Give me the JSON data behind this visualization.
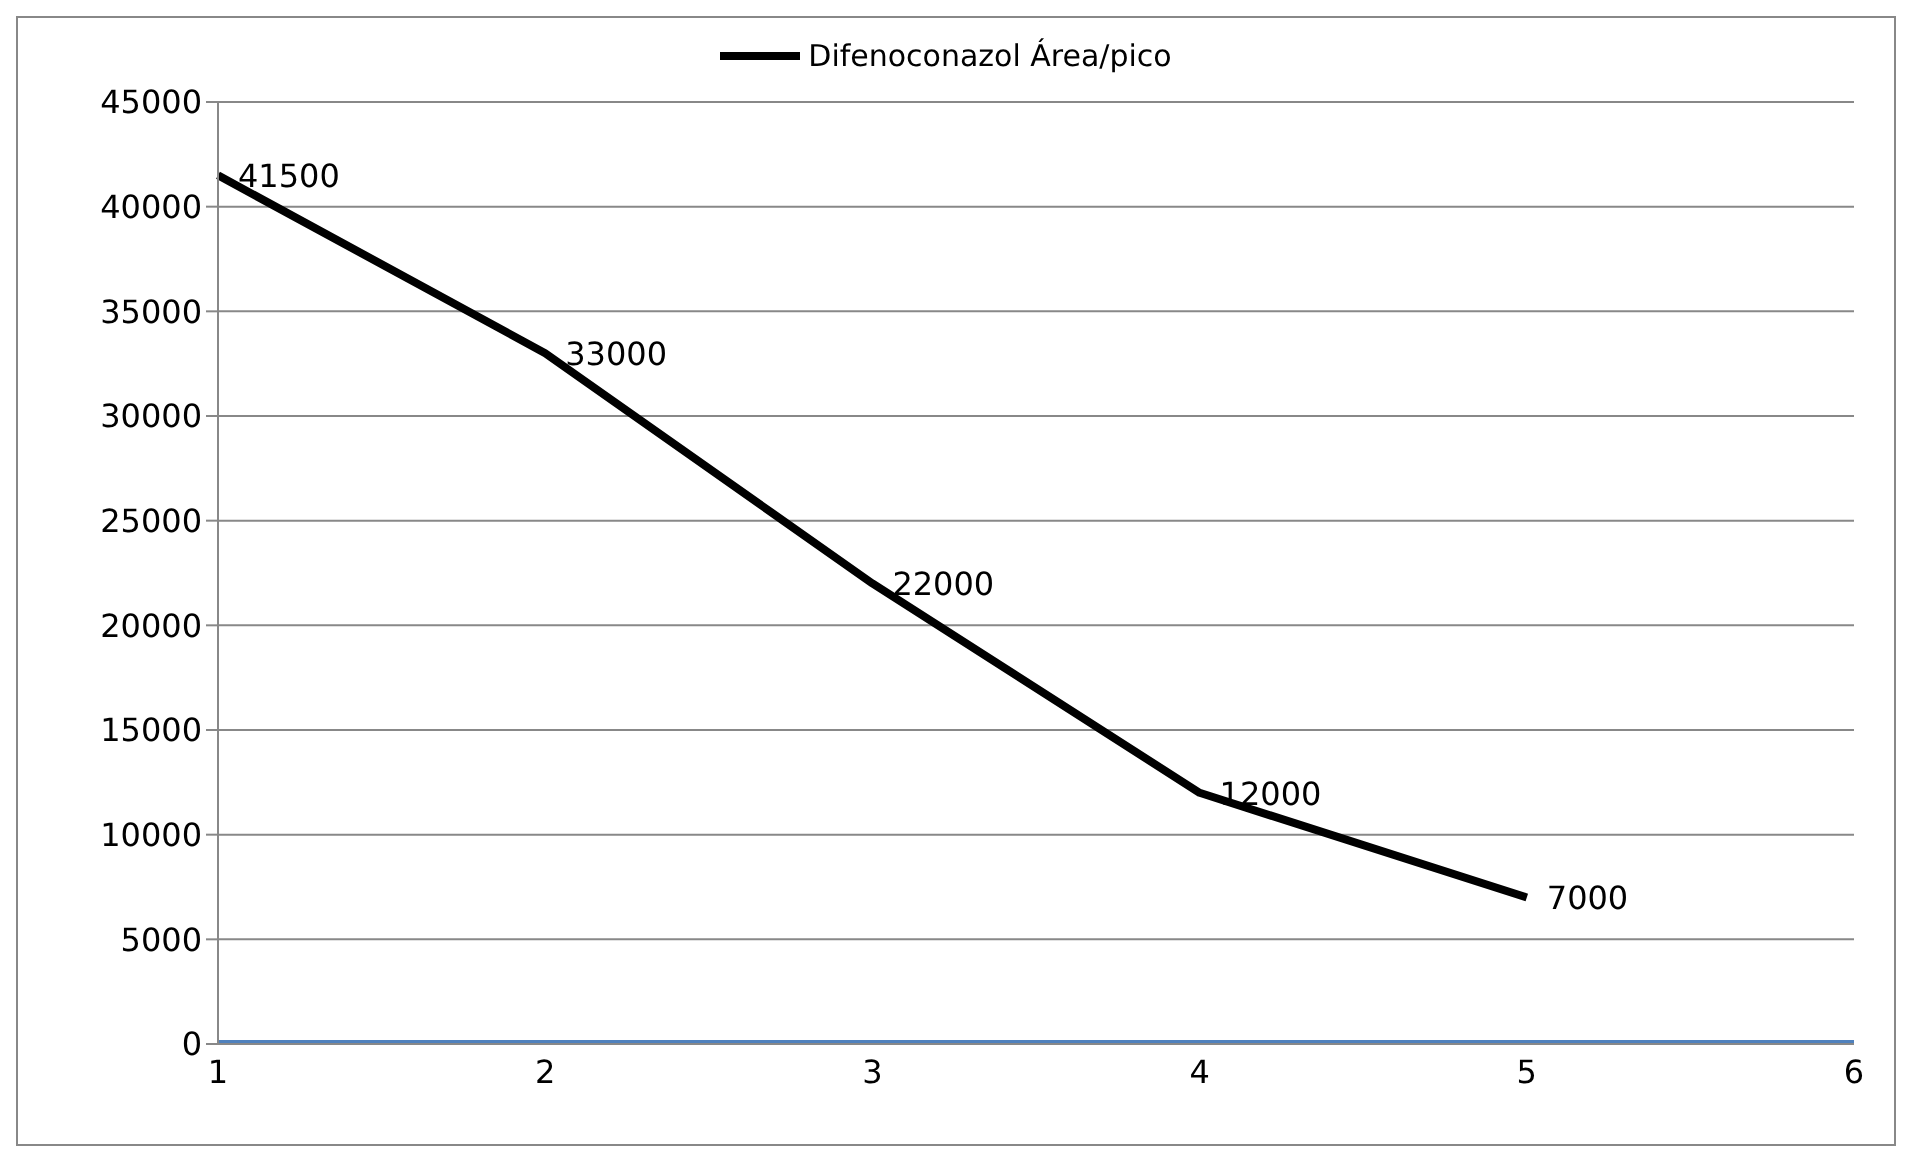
{
  "chart_data": {
    "type": "line",
    "categories": [
      "1",
      "2",
      "3",
      "4",
      "5",
      "6"
    ],
    "series": [
      {
        "name": "Difenoconazol Área/pico",
        "color": "#000000",
        "values": [
          41500,
          33000,
          22000,
          12000,
          7000,
          null
        ],
        "value_labels": [
          "41500",
          "33000",
          "22000",
          "12000",
          "7000",
          null
        ]
      },
      {
        "color": "#4f81bd",
        "values": [
          0,
          0,
          0,
          0,
          0,
          0
        ]
      }
    ],
    "ylim": [
      0,
      45000
    ],
    "yticks": [
      0,
      5000,
      10000,
      15000,
      20000,
      25000,
      30000,
      35000,
      40000,
      45000
    ],
    "grid": "y",
    "legend": "top",
    "marker": "none",
    "line_style": "solid"
  }
}
